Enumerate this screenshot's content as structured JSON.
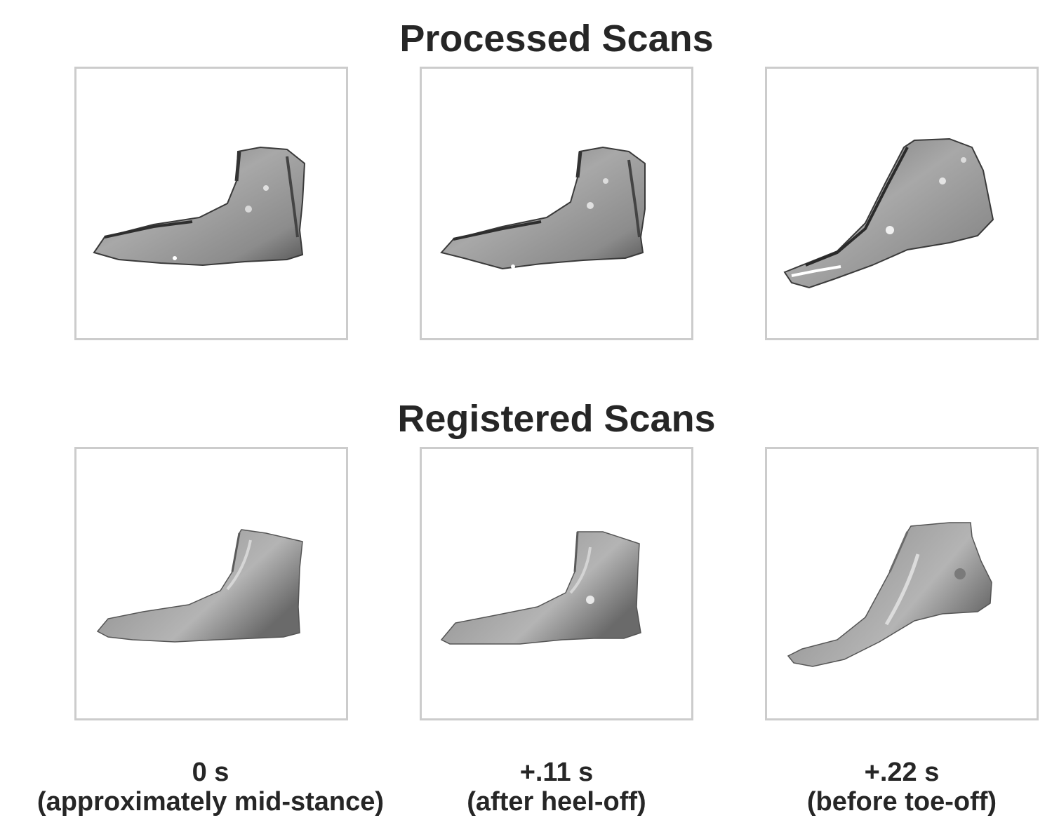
{
  "rows": [
    {
      "title": "Processed Scans",
      "kind": "processed"
    },
    {
      "title": "Registered Scans",
      "kind": "registered"
    }
  ],
  "columns": [
    {
      "time": "0 s",
      "phase": "(approximately mid-stance)"
    },
    {
      "time": "+.11 s",
      "phase": "(after heel-off)"
    },
    {
      "time": "+.22 s",
      "phase": "(before toe-off)"
    }
  ],
  "colors": {
    "border": "#cccccc",
    "text": "#262626",
    "surface": "#9a9a9a"
  }
}
